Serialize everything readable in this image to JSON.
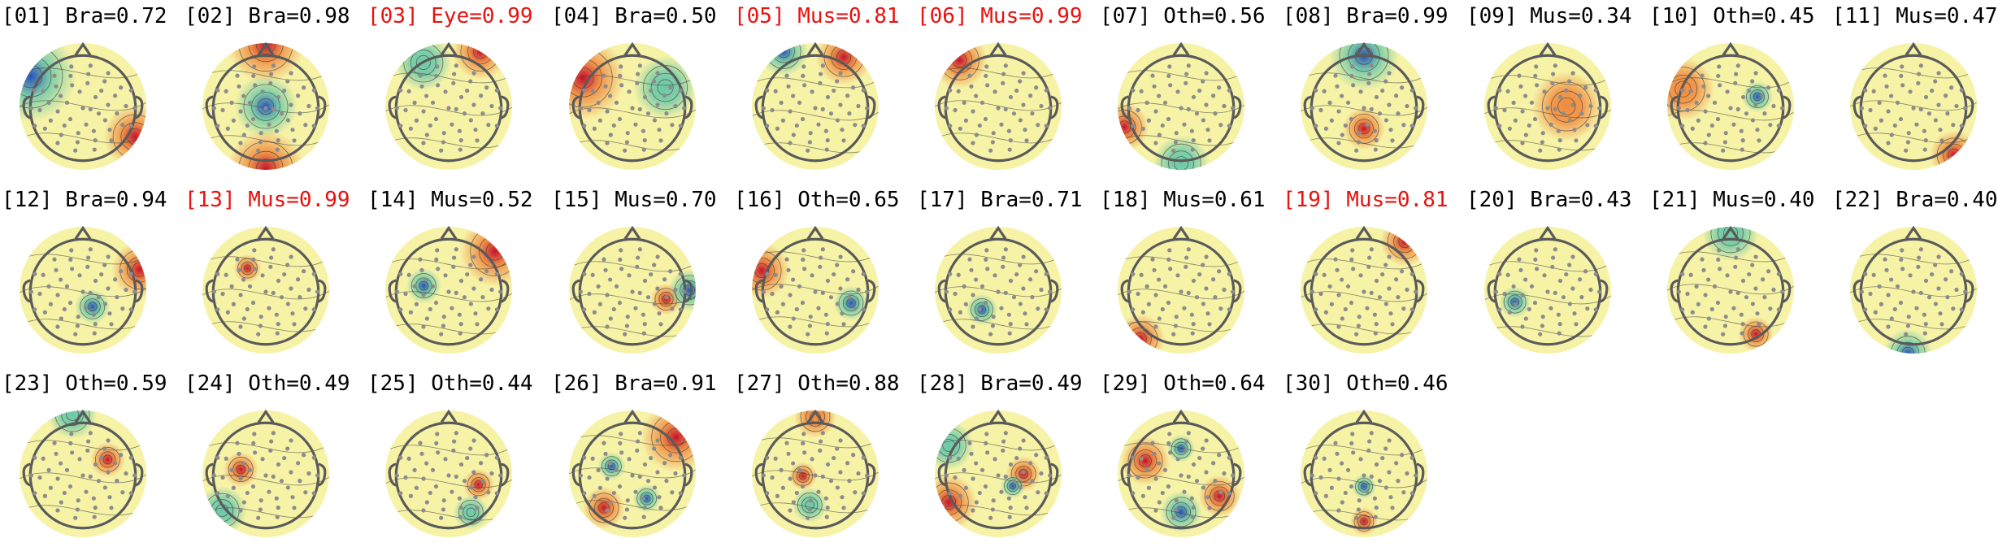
{
  "components": [
    {
      "id": "01",
      "label": "Bra",
      "score": "0.72",
      "flagged": false
    },
    {
      "id": "02",
      "label": "Bra",
      "score": "0.98",
      "flagged": false
    },
    {
      "id": "03",
      "label": "Eye",
      "score": "0.99",
      "flagged": true
    },
    {
      "id": "04",
      "label": "Bra",
      "score": "0.50",
      "flagged": false
    },
    {
      "id": "05",
      "label": "Mus",
      "score": "0.81",
      "flagged": true
    },
    {
      "id": "06",
      "label": "Mus",
      "score": "0.99",
      "flagged": true
    },
    {
      "id": "07",
      "label": "Oth",
      "score": "0.56",
      "flagged": false
    },
    {
      "id": "08",
      "label": "Bra",
      "score": "0.99",
      "flagged": false
    },
    {
      "id": "09",
      "label": "Mus",
      "score": "0.34",
      "flagged": false
    },
    {
      "id": "10",
      "label": "Oth",
      "score": "0.45",
      "flagged": false
    },
    {
      "id": "11",
      "label": "Mus",
      "score": "0.47",
      "flagged": false
    },
    {
      "id": "12",
      "label": "Bra",
      "score": "0.94",
      "flagged": false
    },
    {
      "id": "13",
      "label": "Mus",
      "score": "0.99",
      "flagged": true
    },
    {
      "id": "14",
      "label": "Mus",
      "score": "0.52",
      "flagged": false
    },
    {
      "id": "15",
      "label": "Mus",
      "score": "0.70",
      "flagged": false
    },
    {
      "id": "16",
      "label": "Oth",
      "score": "0.65",
      "flagged": false
    },
    {
      "id": "17",
      "label": "Bra",
      "score": "0.71",
      "flagged": false
    },
    {
      "id": "18",
      "label": "Mus",
      "score": "0.61",
      "flagged": false
    },
    {
      "id": "19",
      "label": "Mus",
      "score": "0.81",
      "flagged": true
    },
    {
      "id": "20",
      "label": "Bra",
      "score": "0.43",
      "flagged": false
    },
    {
      "id": "21",
      "label": "Mus",
      "score": "0.40",
      "flagged": false
    },
    {
      "id": "22",
      "label": "Bra",
      "score": "0.40",
      "flagged": false
    },
    {
      "id": "23",
      "label": "Oth",
      "score": "0.59",
      "flagged": false
    },
    {
      "id": "24",
      "label": "Oth",
      "score": "0.49",
      "flagged": false
    },
    {
      "id": "25",
      "label": "Oth",
      "score": "0.44",
      "flagged": false
    },
    {
      "id": "26",
      "label": "Bra",
      "score": "0.91",
      "flagged": false
    },
    {
      "id": "27",
      "label": "Oth",
      "score": "0.88",
      "flagged": false
    },
    {
      "id": "28",
      "label": "Bra",
      "score": "0.49",
      "flagged": false
    },
    {
      "id": "29",
      "label": "Oth",
      "score": "0.64",
      "flagged": false
    },
    {
      "id": "30",
      "label": "Oth",
      "score": "0.46",
      "flagged": false
    }
  ],
  "colors": {
    "normal_title": "#000000",
    "flagged_title": "#e8120f",
    "head_outline": "#5a5a5a",
    "sensor": "#8c8c8c",
    "contour": "#3a3a3a",
    "background_field": "#f6f2a6",
    "positive_peak": "#c4122c",
    "warm": "#f08a3e",
    "negative_peak": "#2a4fb8",
    "cool": "#6cc8a8"
  }
}
